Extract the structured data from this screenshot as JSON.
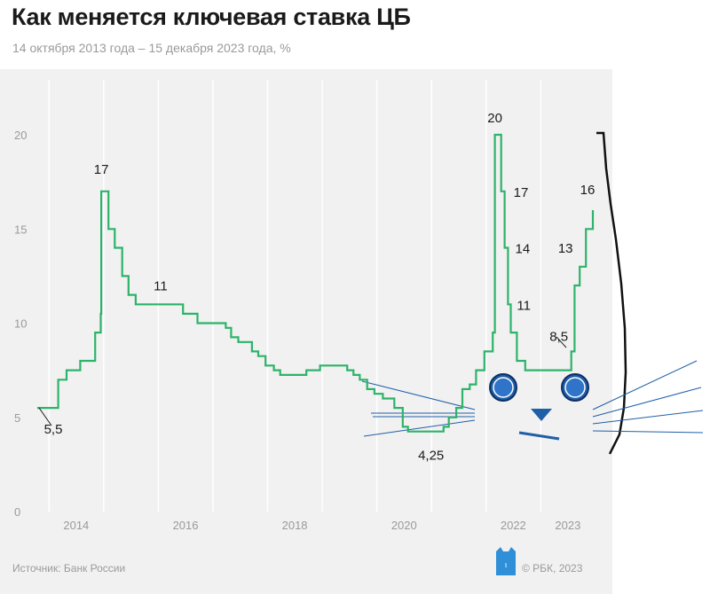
{
  "title": "Как меняется ключевая ставка ЦБ",
  "subtitle": "14 октября 2013 года – 15 декабря 2023 года, %",
  "source": "Источник: Банк России",
  "copyright": "© РБК, 2023",
  "logo_icon": "rbc-cat-logo-icon",
  "colors": {
    "line": "#2db36a",
    "grid": "#ffffff",
    "panel": "#f1f1f1",
    "axis_text": "#9a9a9a",
    "doodle_blue": "#1f5fa8",
    "doodle_black": "#111111"
  },
  "chart_data": {
    "type": "line",
    "title": "Как меняется ключевая ставка ЦБ",
    "subtitle": "14 октября 2013 года – 15 декабря 2023 года, %",
    "xlabel": "",
    "ylabel": "",
    "ylim": [
      0,
      20
    ],
    "yticks": [
      0,
      5,
      10,
      15,
      20
    ],
    "xticks": [
      {
        "label": "2014",
        "x": "2014-07-01"
      },
      {
        "label": "2016",
        "x": "2016-07-01"
      },
      {
        "label": "2018",
        "x": "2018-07-01"
      },
      {
        "label": "2020",
        "x": "2020-07-01"
      },
      {
        "label": "2022",
        "x": "2022-07-01"
      },
      {
        "label": "2023",
        "x": "2023-07-01"
      }
    ],
    "xlim": [
      "2013-10-14",
      "2023-12-15"
    ],
    "grid": "vertical",
    "series": [
      {
        "step": true,
        "points": [
          [
            "2013-10-14",
            5.5
          ],
          [
            "2014-03-03",
            7.0
          ],
          [
            "2014-04-28",
            7.5
          ],
          [
            "2014-07-28",
            8.0
          ],
          [
            "2014-11-05",
            9.5
          ],
          [
            "2014-12-12",
            10.5
          ],
          [
            "2014-12-16",
            17.0
          ],
          [
            "2015-02-02",
            15.0
          ],
          [
            "2015-03-16",
            14.0
          ],
          [
            "2015-05-05",
            12.5
          ],
          [
            "2015-06-16",
            11.5
          ],
          [
            "2015-08-03",
            11.0
          ],
          [
            "2016-06-14",
            10.5
          ],
          [
            "2016-09-19",
            10.0
          ],
          [
            "2017-03-27",
            9.75
          ],
          [
            "2017-05-02",
            9.25
          ],
          [
            "2017-06-19",
            9.0
          ],
          [
            "2017-09-18",
            8.5
          ],
          [
            "2017-10-30",
            8.25
          ],
          [
            "2017-12-18",
            7.75
          ],
          [
            "2018-02-12",
            7.5
          ],
          [
            "2018-03-26",
            7.25
          ],
          [
            "2018-09-17",
            7.5
          ],
          [
            "2018-12-17",
            7.75
          ],
          [
            "2019-06-17",
            7.5
          ],
          [
            "2019-07-29",
            7.25
          ],
          [
            "2019-09-09",
            7.0
          ],
          [
            "2019-10-28",
            6.5
          ],
          [
            "2019-12-16",
            6.25
          ],
          [
            "2020-02-10",
            6.0
          ],
          [
            "2020-04-27",
            5.5
          ],
          [
            "2020-06-22",
            4.5
          ],
          [
            "2020-07-27",
            4.25
          ],
          [
            "2021-03-22",
            4.5
          ],
          [
            "2021-04-26",
            5.0
          ],
          [
            "2021-06-15",
            5.5
          ],
          [
            "2021-07-26",
            6.5
          ],
          [
            "2021-09-13",
            6.75
          ],
          [
            "2021-10-25",
            7.5
          ],
          [
            "2021-12-20",
            8.5
          ],
          [
            "2022-02-14",
            9.5
          ],
          [
            "2022-02-28",
            20.0
          ],
          [
            "2022-04-11",
            17.0
          ],
          [
            "2022-05-04",
            14.0
          ],
          [
            "2022-05-27",
            11.0
          ],
          [
            "2022-06-14",
            9.5
          ],
          [
            "2022-07-25",
            8.0
          ],
          [
            "2022-09-19",
            7.5
          ],
          [
            "2023-07-24",
            8.5
          ],
          [
            "2023-08-15",
            12.0
          ],
          [
            "2023-09-18",
            13.0
          ],
          [
            "2023-10-30",
            15.0
          ],
          [
            "2023-12-15",
            16.0
          ]
        ]
      }
    ],
    "annotations": [
      {
        "text": "5,5",
        "x": "2013-10-14",
        "y": 5.5
      },
      {
        "text": "17",
        "x": "2014-12-16",
        "y": 17
      },
      {
        "text": "11",
        "x": "2015-08-03",
        "y": 11
      },
      {
        "text": "4,25",
        "x": "2020-07-27",
        "y": 4.25
      },
      {
        "text": "20",
        "x": "2022-02-28",
        "y": 20
      },
      {
        "text": "17",
        "x": "2022-04-11",
        "y": 17
      },
      {
        "text": "14",
        "x": "2022-05-04",
        "y": 14
      },
      {
        "text": "11",
        "x": "2022-05-27",
        "y": 11
      },
      {
        "text": "8,5",
        "x": "2023-07-24",
        "y": 8.5
      },
      {
        "text": "13",
        "x": "2023-09-18",
        "y": 13
      },
      {
        "text": "16",
        "x": "2023-12-15",
        "y": 16
      }
    ]
  }
}
